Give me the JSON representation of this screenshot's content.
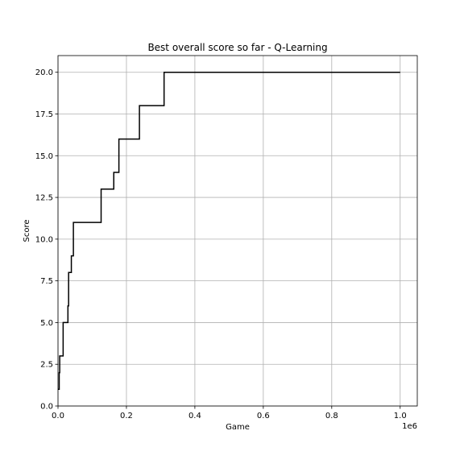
{
  "chart_data": {
    "type": "line",
    "title": "Best overall score so far - Q-Learning",
    "xlabel": "Game",
    "ylabel": "Score",
    "x_offset_text": "1e6",
    "xlim": [
      0,
      1050000
    ],
    "ylim": [
      0,
      21
    ],
    "grid": true,
    "line_color": "#000000",
    "drawstyle": "steps-post",
    "x_ticks": [
      0,
      200000,
      400000,
      600000,
      800000,
      1000000
    ],
    "x_tick_labels": [
      "0.0",
      "0.2",
      "0.4",
      "0.6",
      "0.8",
      "1.0"
    ],
    "y_ticks": [
      0,
      2.5,
      5,
      7.5,
      10,
      12.5,
      15,
      17.5,
      20
    ],
    "y_tick_labels": [
      "0.0",
      "2.5",
      "5.0",
      "7.5",
      "10.0",
      "12.5",
      "15.0",
      "17.5",
      "20.0"
    ],
    "series": [
      {
        "x": [
          0,
          3500,
          5000,
          10000,
          15000,
          29000,
          31000,
          39000,
          45000,
          126000,
          163000,
          178000,
          238000,
          310000,
          1000000
        ],
        "y": [
          1,
          2,
          3,
          3,
          5,
          6,
          8,
          9,
          11,
          13,
          14,
          16,
          18,
          20,
          20
        ]
      }
    ]
  }
}
